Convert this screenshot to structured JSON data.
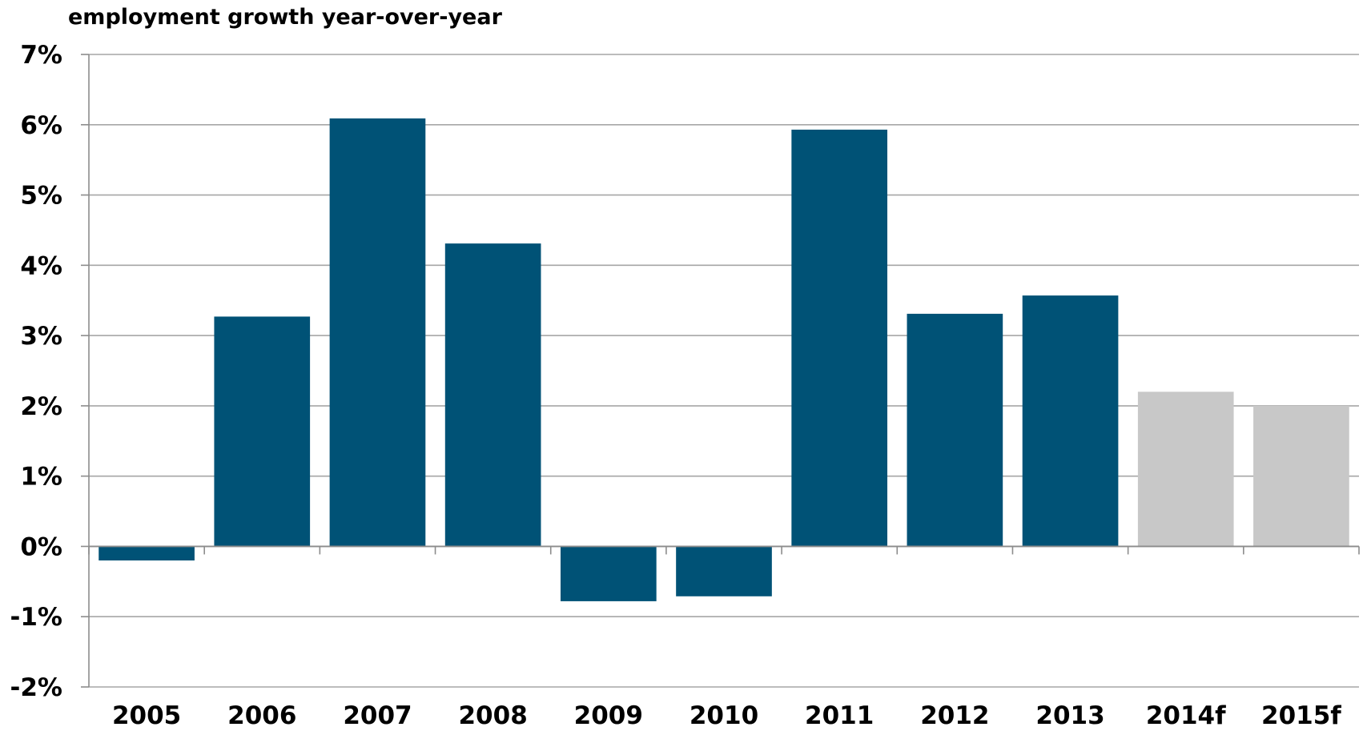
{
  "chart_data": {
    "type": "bar",
    "title": "employment growth year-over-year",
    "xlabel": "",
    "ylabel": "",
    "categories": [
      "2005",
      "2006",
      "2007",
      "2008",
      "2009",
      "2010",
      "2011",
      "2012",
      "2013",
      "2014f",
      "2015f"
    ],
    "series": [
      {
        "values": [
          -0.2,
          3.27,
          6.09,
          4.31,
          -0.78,
          -0.71,
          5.93,
          3.31,
          3.57,
          2.2,
          2.0
        ]
      }
    ],
    "forecast_categories": [
      "2014f",
      "2015f"
    ],
    "ylim": [
      -2,
      7
    ],
    "yticks": [
      -2,
      -1,
      0,
      1,
      2,
      3,
      4,
      5,
      6,
      7
    ],
    "ytick_labels": [
      "-2%",
      "-1%",
      "0%",
      "1%",
      "2%",
      "3%",
      "4%",
      "5%",
      "6%",
      "7%"
    ],
    "grid": true,
    "legend": "none",
    "colors": {
      "actual": "#005276",
      "forecast": "#c8c8c8",
      "grid": "#a6a6a6",
      "axis": "#8c8c8c"
    }
  }
}
